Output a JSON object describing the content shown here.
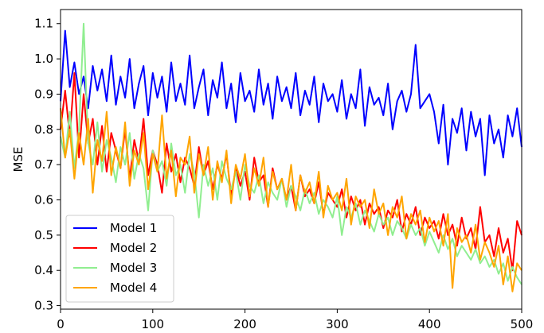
{
  "chart_data": {
    "type": "line",
    "title": "",
    "xlabel": "",
    "ylabel": "MSE",
    "xlim": [
      0,
      500
    ],
    "ylim": [
      0.29,
      1.14
    ],
    "x_ticks": [
      0,
      100,
      200,
      300,
      400,
      500
    ],
    "y_ticks": [
      0.3,
      0.4,
      0.5,
      0.6,
      0.7,
      0.8,
      0.9,
      1.0,
      1.1
    ],
    "grid": false,
    "legend_position": "bottom-left",
    "series": [
      {
        "name": "Model 1",
        "color": "#0000ff",
        "x": [
          0,
          5,
          10,
          15,
          20,
          25,
          30,
          35,
          40,
          45,
          50,
          55,
          60,
          65,
          70,
          75,
          80,
          85,
          90,
          95,
          100,
          105,
          110,
          115,
          120,
          125,
          130,
          135,
          140,
          145,
          150,
          155,
          160,
          165,
          170,
          175,
          180,
          185,
          190,
          195,
          200,
          205,
          210,
          215,
          220,
          225,
          230,
          235,
          240,
          245,
          250,
          255,
          260,
          265,
          270,
          275,
          280,
          285,
          290,
          295,
          300,
          305,
          310,
          315,
          320,
          325,
          330,
          335,
          340,
          345,
          350,
          355,
          360,
          365,
          370,
          375,
          380,
          385,
          390,
          395,
          400,
          405,
          410,
          415,
          420,
          425,
          430,
          435,
          440,
          445,
          450,
          455,
          460,
          465,
          470,
          475,
          480,
          485,
          490,
          495,
          500
        ],
        "values": [
          0.88,
          1.08,
          0.92,
          0.99,
          0.9,
          0.95,
          0.86,
          0.98,
          0.91,
          0.97,
          0.88,
          1.01,
          0.87,
          0.95,
          0.89,
          1.0,
          0.86,
          0.93,
          0.98,
          0.84,
          0.96,
          0.89,
          0.95,
          0.85,
          0.99,
          0.88,
          0.93,
          0.87,
          1.01,
          0.86,
          0.92,
          0.97,
          0.84,
          0.94,
          0.89,
          0.99,
          0.86,
          0.93,
          0.82,
          0.96,
          0.88,
          0.91,
          0.85,
          0.97,
          0.87,
          0.93,
          0.83,
          0.95,
          0.88,
          0.92,
          0.86,
          0.96,
          0.84,
          0.91,
          0.87,
          0.95,
          0.82,
          0.93,
          0.88,
          0.9,
          0.85,
          0.94,
          0.83,
          0.9,
          0.86,
          0.97,
          0.81,
          0.92,
          0.87,
          0.89,
          0.84,
          0.93,
          0.8,
          0.88,
          0.91,
          0.85,
          0.9,
          1.04,
          0.86,
          0.88,
          0.9,
          0.85,
          0.76,
          0.87,
          0.7,
          0.83,
          0.79,
          0.86,
          0.74,
          0.85,
          0.78,
          0.83,
          0.67,
          0.84,
          0.76,
          0.8,
          0.72,
          0.84,
          0.78,
          0.86,
          0.75
        ]
      },
      {
        "name": "Model 2",
        "color": "#ff0000",
        "x": [
          0,
          5,
          10,
          15,
          20,
          25,
          30,
          35,
          40,
          45,
          50,
          55,
          60,
          65,
          70,
          75,
          80,
          85,
          90,
          95,
          100,
          105,
          110,
          115,
          120,
          125,
          130,
          135,
          140,
          145,
          150,
          155,
          160,
          165,
          170,
          175,
          180,
          185,
          190,
          195,
          200,
          205,
          210,
          215,
          220,
          225,
          230,
          235,
          240,
          245,
          250,
          255,
          260,
          265,
          270,
          275,
          280,
          285,
          290,
          295,
          300,
          305,
          310,
          315,
          320,
          325,
          330,
          335,
          340,
          345,
          350,
          355,
          360,
          365,
          370,
          375,
          380,
          385,
          390,
          395,
          400,
          405,
          410,
          415,
          420,
          425,
          430,
          435,
          440,
          445,
          450,
          455,
          460,
          465,
          470,
          475,
          480,
          485,
          490,
          495,
          500
        ],
        "values": [
          0.8,
          0.91,
          0.78,
          0.96,
          0.72,
          0.9,
          0.76,
          0.83,
          0.7,
          0.81,
          0.68,
          0.79,
          0.74,
          0.69,
          0.8,
          0.66,
          0.77,
          0.71,
          0.83,
          0.67,
          0.74,
          0.7,
          0.62,
          0.76,
          0.68,
          0.73,
          0.65,
          0.72,
          0.69,
          0.64,
          0.75,
          0.67,
          0.71,
          0.63,
          0.7,
          0.66,
          0.73,
          0.61,
          0.69,
          0.64,
          0.68,
          0.6,
          0.72,
          0.65,
          0.67,
          0.58,
          0.69,
          0.63,
          0.66,
          0.6,
          0.64,
          0.57,
          0.67,
          0.61,
          0.63,
          0.59,
          0.65,
          0.56,
          0.62,
          0.6,
          0.58,
          0.63,
          0.55,
          0.61,
          0.57,
          0.6,
          0.53,
          0.59,
          0.56,
          0.58,
          0.52,
          0.57,
          0.55,
          0.6,
          0.51,
          0.56,
          0.53,
          0.58,
          0.5,
          0.55,
          0.52,
          0.54,
          0.49,
          0.56,
          0.5,
          0.53,
          0.47,
          0.55,
          0.49,
          0.52,
          0.46,
          0.58,
          0.48,
          0.5,
          0.44,
          0.52,
          0.45,
          0.49,
          0.4,
          0.54,
          0.5
        ]
      },
      {
        "name": "Model 3",
        "color": "#90ee90",
        "x": [
          0,
          5,
          10,
          15,
          20,
          25,
          30,
          35,
          40,
          45,
          50,
          55,
          60,
          65,
          70,
          75,
          80,
          85,
          90,
          95,
          100,
          105,
          110,
          115,
          120,
          125,
          130,
          135,
          140,
          145,
          150,
          155,
          160,
          165,
          170,
          175,
          180,
          185,
          190,
          195,
          200,
          205,
          210,
          215,
          220,
          225,
          230,
          235,
          240,
          245,
          250,
          255,
          260,
          265,
          270,
          275,
          280,
          285,
          290,
          295,
          300,
          305,
          310,
          315,
          320,
          325,
          330,
          335,
          340,
          345,
          350,
          355,
          360,
          365,
          370,
          375,
          380,
          385,
          390,
          395,
          400,
          405,
          410,
          415,
          420,
          425,
          430,
          435,
          440,
          445,
          450,
          455,
          460,
          465,
          470,
          475,
          480,
          485,
          490,
          495,
          500
        ],
        "values": [
          0.78,
          0.72,
          0.85,
          0.69,
          0.8,
          1.1,
          0.76,
          0.7,
          0.82,
          0.68,
          0.77,
          0.72,
          0.65,
          0.75,
          0.7,
          0.79,
          0.66,
          0.73,
          0.69,
          0.57,
          0.74,
          0.68,
          0.71,
          0.64,
          0.76,
          0.67,
          0.7,
          0.62,
          0.73,
          0.68,
          0.55,
          0.7,
          0.64,
          0.69,
          0.6,
          0.71,
          0.66,
          0.63,
          0.68,
          0.6,
          0.7,
          0.64,
          0.62,
          0.67,
          0.59,
          0.65,
          0.62,
          0.6,
          0.66,
          0.58,
          0.64,
          0.61,
          0.57,
          0.63,
          0.59,
          0.62,
          0.56,
          0.6,
          0.58,
          0.55,
          0.61,
          0.5,
          0.58,
          0.55,
          0.59,
          0.53,
          0.57,
          0.54,
          0.51,
          0.56,
          0.53,
          0.55,
          0.5,
          0.54,
          0.52,
          0.49,
          0.53,
          0.5,
          0.52,
          0.47,
          0.51,
          0.48,
          0.45,
          0.5,
          0.46,
          0.49,
          0.44,
          0.47,
          0.45,
          0.43,
          0.46,
          0.42,
          0.44,
          0.41,
          0.43,
          0.39,
          0.42,
          0.37,
          0.41,
          0.38,
          0.36
        ]
      },
      {
        "name": "Model 4",
        "color": "#ffa500",
        "x": [
          0,
          5,
          10,
          15,
          20,
          25,
          30,
          35,
          40,
          45,
          50,
          55,
          60,
          65,
          70,
          75,
          80,
          85,
          90,
          95,
          100,
          105,
          110,
          115,
          120,
          125,
          130,
          135,
          140,
          145,
          150,
          155,
          160,
          165,
          170,
          175,
          180,
          185,
          190,
          195,
          200,
          205,
          210,
          215,
          220,
          225,
          230,
          235,
          240,
          245,
          250,
          255,
          260,
          265,
          270,
          275,
          280,
          285,
          290,
          295,
          300,
          305,
          310,
          315,
          320,
          325,
          330,
          335,
          340,
          345,
          350,
          355,
          360,
          365,
          370,
          375,
          380,
          385,
          390,
          395,
          400,
          405,
          410,
          415,
          420,
          425,
          430,
          435,
          440,
          445,
          450,
          455,
          460,
          465,
          470,
          475,
          480,
          485,
          490,
          495,
          500
        ],
        "values": [
          0.86,
          0.72,
          0.8,
          0.66,
          0.79,
          0.7,
          0.83,
          0.62,
          0.77,
          0.71,
          0.85,
          0.67,
          0.75,
          0.69,
          0.82,
          0.64,
          0.74,
          0.7,
          0.79,
          0.63,
          0.73,
          0.68,
          0.84,
          0.66,
          0.74,
          0.61,
          0.72,
          0.7,
          0.78,
          0.62,
          0.73,
          0.67,
          0.75,
          0.6,
          0.71,
          0.65,
          0.74,
          0.59,
          0.7,
          0.66,
          0.73,
          0.61,
          0.69,
          0.64,
          0.72,
          0.58,
          0.68,
          0.63,
          0.66,
          0.6,
          0.7,
          0.57,
          0.67,
          0.62,
          0.65,
          0.59,
          0.68,
          0.55,
          0.64,
          0.6,
          0.62,
          0.57,
          0.66,
          0.53,
          0.61,
          0.58,
          0.6,
          0.52,
          0.63,
          0.56,
          0.59,
          0.5,
          0.58,
          0.55,
          0.61,
          0.49,
          0.56,
          0.53,
          0.57,
          0.48,
          0.55,
          0.51,
          0.54,
          0.47,
          0.56,
          0.35,
          0.52,
          0.48,
          0.5,
          0.45,
          0.53,
          0.43,
          0.48,
          0.45,
          0.41,
          0.47,
          0.36,
          0.44,
          0.34,
          0.42,
          0.4
        ]
      }
    ]
  }
}
